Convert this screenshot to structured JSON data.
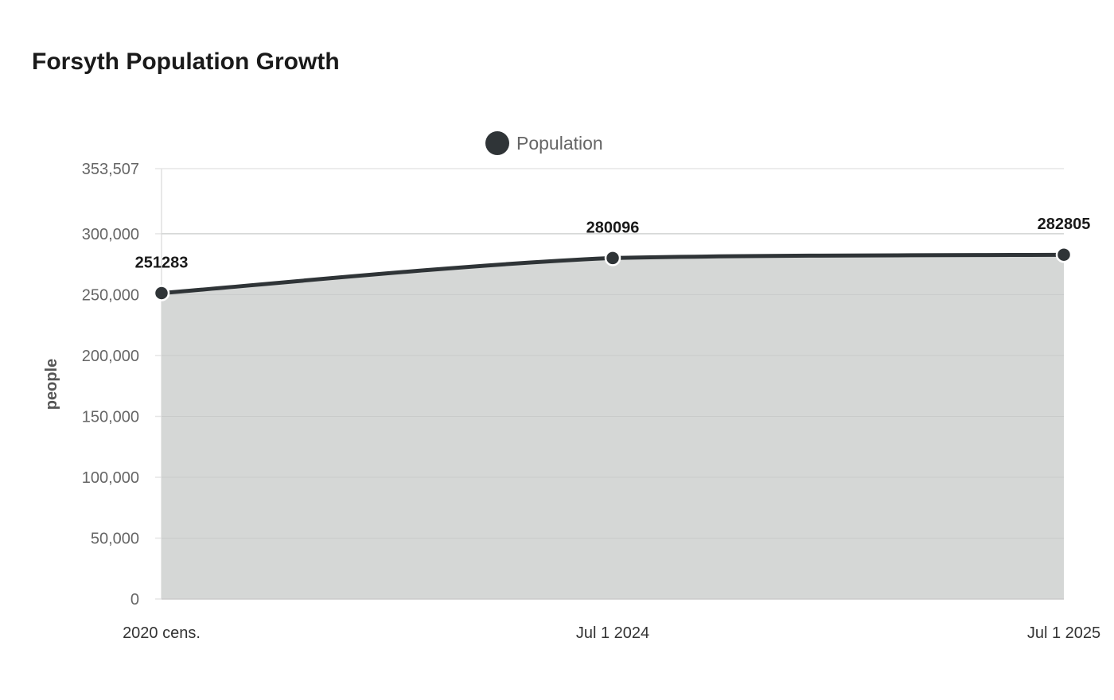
{
  "chart_data": {
    "type": "area",
    "title": "Forsyth Population Growth",
    "xlabel": "",
    "ylabel": "people",
    "categories": [
      "2020 cens.",
      "Jul 1 2024",
      "Jul 1 2025"
    ],
    "series": [
      {
        "name": "Population",
        "values": [
          251283,
          280096,
          282805
        ],
        "color": "#2f3437",
        "fill": "#d5d7d6"
      }
    ],
    "ylim": [
      0,
      353507
    ],
    "yticks": [
      0,
      50000,
      100000,
      150000,
      200000,
      250000,
      300000,
      353507
    ],
    "ytick_labels": [
      "0",
      "50,000",
      "100,000",
      "150,000",
      "200,000",
      "250,000",
      "300,000",
      "353,507"
    ],
    "data_labels": [
      "251283",
      "280096",
      "282805"
    ],
    "grid": true,
    "legend_position": "top"
  }
}
